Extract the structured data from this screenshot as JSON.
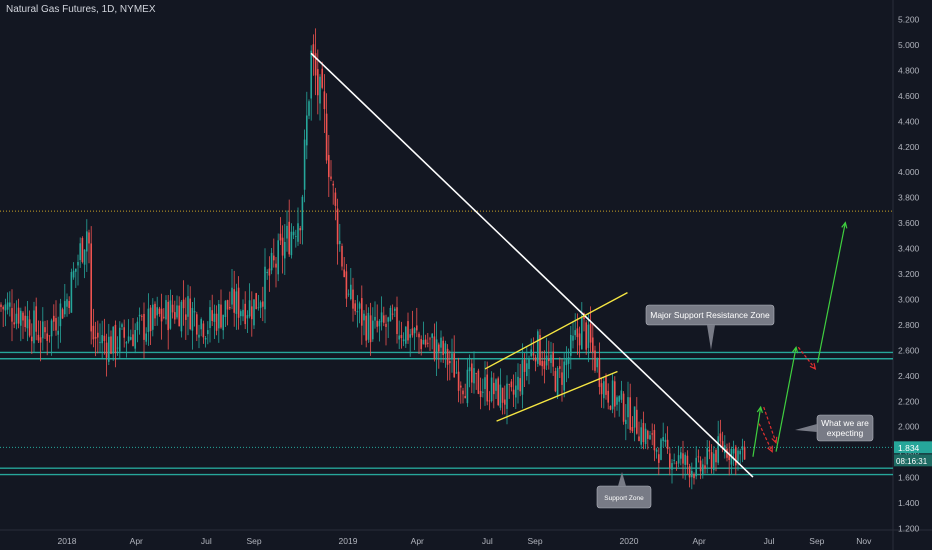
{
  "header": {
    "symbol_label": "Natural Gas Futures, 1D, NYMEX"
  },
  "colors": {
    "background": "#131722",
    "up": "#26a69a",
    "down": "#ef5350",
    "teal_zone": "#26a69a",
    "trendline": "#ffffff",
    "channel": "#f5e642",
    "green_arrow": "#3fcf3f",
    "red_arrow": "#e03030",
    "text": "#b2b5be"
  },
  "chart_data": {
    "type": "candlestick",
    "y_axis": {
      "min": 1.2,
      "max": 5.2,
      "ticks": [
        "5.200",
        "5.000",
        "4.800",
        "4.600",
        "4.400",
        "4.200",
        "4.000",
        "3.800",
        "3.600",
        "3.400",
        "3.200",
        "3.000",
        "2.800",
        "2.600",
        "2.400",
        "2.200",
        "2.000",
        "1.800",
        "1.600",
        "1.400",
        "1.200"
      ]
    },
    "x_axis": {
      "ticks": [
        "2018",
        "Apr",
        "Jul",
        "Sep",
        "2019",
        "Apr",
        "Jul",
        "Sep",
        "2020",
        "Apr",
        "Jul",
        "Sep",
        "Nov"
      ]
    },
    "price_path": [
      {
        "t": "2017-10",
        "p": 2.95
      },
      {
        "t": "2017-11",
        "p": 2.9
      },
      {
        "t": "2017-12",
        "p": 2.7
      },
      {
        "t": "2018-01",
        "p": 3.0
      },
      {
        "t": "2018-01-29",
        "p": 3.6
      },
      {
        "t": "2018-02",
        "p": 2.7
      },
      {
        "t": "2018-03",
        "p": 2.65
      },
      {
        "t": "2018-04",
        "p": 2.75
      },
      {
        "t": "2018-05",
        "p": 2.85
      },
      {
        "t": "2018-06",
        "p": 2.95
      },
      {
        "t": "2018-07",
        "p": 2.8
      },
      {
        "t": "2018-08",
        "p": 2.95
      },
      {
        "t": "2018-09",
        "p": 2.95
      },
      {
        "t": "2018-10",
        "p": 3.3
      },
      {
        "t": "2018-11",
        "p": 3.7
      },
      {
        "t": "2018-11-14",
        "p": 4.9
      },
      {
        "t": "2018-12",
        "p": 4.4
      },
      {
        "t": "2018-12-15",
        "p": 3.7
      },
      {
        "t": "2019-01",
        "p": 3.0
      },
      {
        "t": "2019-02",
        "p": 2.75
      },
      {
        "t": "2019-03",
        "p": 2.8
      },
      {
        "t": "2019-04",
        "p": 2.7
      },
      {
        "t": "2019-05",
        "p": 2.6
      },
      {
        "t": "2019-06",
        "p": 2.35
      },
      {
        "t": "2019-07",
        "p": 2.3
      },
      {
        "t": "2019-08",
        "p": 2.2
      },
      {
        "t": "2019-09",
        "p": 2.65
      },
      {
        "t": "2019-10",
        "p": 2.35
      },
      {
        "t": "2019-11",
        "p": 2.8
      },
      {
        "t": "2019-12",
        "p": 2.3
      },
      {
        "t": "2020-01",
        "p": 2.1
      },
      {
        "t": "2020-02",
        "p": 1.85
      },
      {
        "t": "2020-03",
        "p": 1.75
      },
      {
        "t": "2020-04",
        "p": 1.65
      },
      {
        "t": "2020-05",
        "p": 1.85
      },
      {
        "t": "2020-06",
        "p": 1.75
      }
    ],
    "horizontal_levels": [
      {
        "price": 3.69,
        "style": "dotted",
        "color": "#c9a227"
      },
      {
        "price": 1.834,
        "style": "dotted",
        "color": "#26a69a"
      }
    ],
    "zones": [
      {
        "name": "Major Support Resistance Zone",
        "top": 2.58,
        "bottom": 2.53
      },
      {
        "name": "Support Zone",
        "top": 1.67,
        "bottom": 1.62
      }
    ],
    "last_price": "1.834",
    "countdown": "08:16:31",
    "annotations": [
      {
        "text": "Major Support Resistance Zone"
      },
      {
        "text": "What we are expecting"
      },
      {
        "text": "Support Zone"
      }
    ]
  }
}
